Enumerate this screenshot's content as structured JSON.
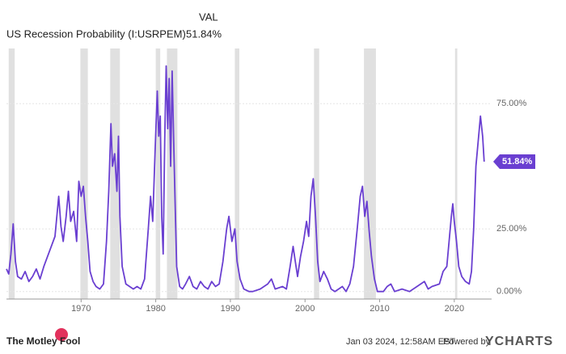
{
  "chart_data": {
    "type": "line",
    "title": "US Recession Probability (I:USRPEM)",
    "column_header": "VAL",
    "current_value_label": "51.84%",
    "x": [
      1960,
      1960.3,
      1960.6,
      1960.9,
      1961.2,
      1961.5,
      1962,
      1962.5,
      1963,
      1963.5,
      1964,
      1964.5,
      1965,
      1965.5,
      1966,
      1966.5,
      1967,
      1967.3,
      1967.6,
      1968,
      1968.3,
      1968.6,
      1969,
      1969.4,
      1969.7,
      1970,
      1970.3,
      1970.6,
      1970.9,
      1971.2,
      1971.6,
      1972,
      1972.5,
      1973,
      1973.4,
      1973.7,
      1974,
      1974.2,
      1974.5,
      1974.8,
      1975,
      1975.2,
      1975.5,
      1976,
      1976.5,
      1977,
      1977.5,
      1978,
      1978.5,
      1979,
      1979.3,
      1979.6,
      1979.9,
      1980.2,
      1980.4,
      1980.6,
      1980.8,
      1981,
      1981.2,
      1981.4,
      1981.6,
      1981.8,
      1982,
      1982.2,
      1982.4,
      1982.6,
      1982.8,
      1983.2,
      1983.6,
      1984,
      1984.5,
      1985,
      1985.5,
      1986,
      1986.5,
      1987,
      1987.5,
      1988,
      1988.5,
      1989,
      1989.5,
      1989.8,
      1990.2,
      1990.6,
      1990.9,
      1991.3,
      1991.8,
      1992.5,
      1993,
      1994,
      1995,
      1995.5,
      1996,
      1997,
      1997.5,
      1998,
      1998.4,
      1998.7,
      1999,
      1999.4,
      1999.8,
      2000.2,
      2000.5,
      2000.8,
      2001.1,
      2001.4,
      2001.7,
      2002,
      2002.5,
      2003,
      2003.5,
      2004,
      2005,
      2005.5,
      2006,
      2006.5,
      2007,
      2007.4,
      2007.7,
      2008,
      2008.3,
      2008.6,
      2008.9,
      2009.3,
      2009.7,
      2010.5,
      2011,
      2011.5,
      2012,
      2013,
      2014,
      2015,
      2016,
      2016.5,
      2017,
      2018,
      2018.5,
      2019,
      2019.3,
      2019.6,
      2019.8,
      2020,
      2020.3,
      2020.6,
      2021,
      2021.5,
      2022,
      2022.3,
      2022.6,
      2022.9,
      2023.2,
      2023.5,
      2023.8,
      2024
    ],
    "series": [
      {
        "name": "US Recession Probability",
        "color": "#6a3fd1",
        "values": [
          9,
          7,
          15,
          27,
          12,
          6,
          5,
          8,
          4,
          6,
          9,
          5,
          10,
          14,
          18,
          22,
          38,
          26,
          20,
          30,
          40,
          28,
          32,
          20,
          44,
          38,
          42,
          30,
          20,
          8,
          4,
          2,
          1,
          3,
          20,
          40,
          67,
          50,
          55,
          40,
          62,
          30,
          10,
          3,
          2,
          1,
          2,
          1,
          5,
          25,
          38,
          28,
          55,
          80,
          62,
          70,
          30,
          15,
          60,
          90,
          65,
          85,
          50,
          88,
          60,
          35,
          10,
          2,
          1,
          3,
          6,
          2,
          1,
          4,
          2,
          1,
          4,
          2,
          3,
          12,
          25,
          30,
          20,
          25,
          12,
          5,
          1,
          0,
          0,
          1,
          3,
          5,
          1,
          2,
          1,
          10,
          18,
          12,
          6,
          14,
          20,
          28,
          22,
          38,
          45,
          30,
          12,
          4,
          8,
          5,
          1,
          0,
          2,
          0,
          3,
          10,
          25,
          38,
          42,
          30,
          36,
          24,
          14,
          5,
          0,
          0,
          2,
          3,
          0,
          1,
          0,
          2,
          4,
          1,
          2,
          3,
          8,
          10,
          20,
          30,
          35,
          28,
          20,
          10,
          6,
          4,
          3,
          8,
          25,
          50,
          60,
          70,
          62,
          51.84
        ]
      }
    ],
    "recessions": [
      [
        1960.3,
        1961.1
      ],
      [
        1969.9,
        1970.9
      ],
      [
        1973.9,
        1975.2
      ],
      [
        1980.0,
        1980.6
      ],
      [
        1981.5,
        1982.9
      ],
      [
        1990.6,
        1991.2
      ],
      [
        2001.2,
        2001.9
      ],
      [
        2007.9,
        2009.5
      ],
      [
        2020.1,
        2020.4
      ]
    ],
    "recession_color": "#e0e0e0",
    "xlim": [
      1960,
      2025
    ],
    "ylim": [
      -3,
      97
    ],
    "xticks": [
      1970,
      1980,
      1990,
      2000,
      2010,
      2020
    ],
    "yticks": [
      {
        "value": 0,
        "label": "0.00%"
      },
      {
        "value": 25,
        "label": "25.00%"
      },
      {
        "value": 75,
        "label": "75.00%"
      }
    ]
  },
  "footer": {
    "brand": "The Motley Fool",
    "timestamp": "Jan 03 2024, 12:58AM EST.",
    "powered_by": "Powered by",
    "provider": "YCHARTS"
  }
}
